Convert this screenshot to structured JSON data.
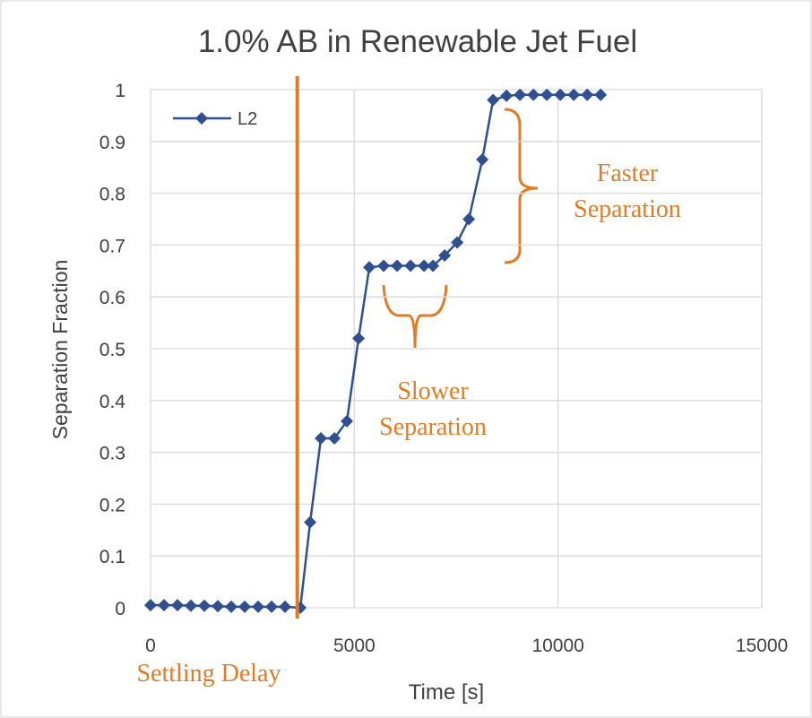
{
  "chart_data": {
    "type": "line",
    "title": "1.0% AB in Renewable Jet Fuel",
    "x_label": "Time [s]",
    "y_label": "Separation Fraction",
    "xlim": [
      0,
      15000
    ],
    "xticks": [
      0,
      5000,
      10000,
      15000
    ],
    "ylim": [
      0,
      1
    ],
    "yticks": [
      0,
      0.1,
      0.2,
      0.3,
      0.4,
      0.5,
      0.6,
      0.7,
      0.8,
      0.9,
      1
    ],
    "grid": true,
    "legend": "upper left",
    "series": [
      {
        "name": "L2",
        "color": "#2f4f8f",
        "x": [
          0,
          330,
          660,
          990,
          1320,
          1650,
          1980,
          2310,
          2640,
          2970,
          3300,
          3675,
          3916,
          4180,
          4510,
          4818,
          5104,
          5368,
          5720,
          6050,
          6380,
          6710,
          6930,
          7216,
          7525,
          7811,
          8140,
          8405,
          8735,
          9065,
          9395,
          9725,
          10055,
          10385,
          10715,
          11045
        ],
        "values": [
          0.005,
          0.005,
          0.005,
          0.004,
          0.004,
          0.003,
          0.002,
          0.002,
          0.002,
          0.002,
          0.002,
          0,
          0.165,
          0.327,
          0.327,
          0.36,
          0.52,
          0.657,
          0.66,
          0.66,
          0.66,
          0.66,
          0.66,
          0.68,
          0.705,
          0.75,
          0.865,
          0.98,
          0.988,
          0.99,
          0.99,
          0.99,
          0.99,
          0.99,
          0.99,
          0.99
        ]
      }
    ],
    "vline": {
      "x": 3600,
      "color": "#e07b28",
      "label": "Settling Delay"
    },
    "annotations": [
      {
        "lines": [
          "Slower",
          "Separation"
        ],
        "color": "#e07b28"
      },
      {
        "lines": [
          "Faster",
          "Separation"
        ],
        "color": "#e07b28"
      }
    ]
  }
}
